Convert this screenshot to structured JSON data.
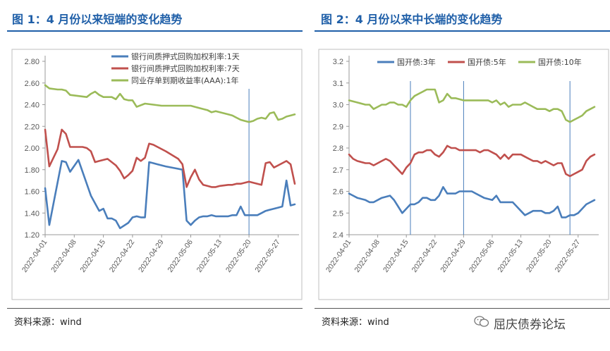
{
  "figures": [
    {
      "title": "图 1：4 月份以来短端的变化趋势",
      "source": "资料来源：wind"
    },
    {
      "title": "图 2：4 月份以来中长端的变化趋势",
      "source": "资料来源：wind"
    }
  ],
  "watermark": {
    "text": "屈庆债券论坛",
    "icon": "wechat-icon"
  },
  "chart_data": [
    {
      "type": "line",
      "title": "图 1：4 月份以来短端的变化趋势",
      "xlabel": "",
      "ylabel": "",
      "ylim": [
        1.2,
        2.8
      ],
      "yticks": [
        "1.20",
        "1.40",
        "1.60",
        "1.80",
        "2.00",
        "2.20",
        "2.40",
        "2.60",
        "2.80"
      ],
      "xticks": [
        "2022-04-01",
        "2022-04-08",
        "2022-04-15",
        "2022-04-22",
        "2022-04-29",
        "2022-05-06",
        "2022-05-13",
        "2022-05-20",
        "2022-05-27"
      ],
      "grid": false,
      "legend": "top-right",
      "vlines": [
        49
      ],
      "series": [
        {
          "name": "银行间质押式回购加权利率:1天",
          "color": "#4a7ebb",
          "x": [
            0,
            1,
            4,
            5,
            6,
            8,
            11,
            13,
            14,
            15,
            16,
            17,
            18,
            20,
            21,
            22,
            23,
            24,
            25,
            26,
            27,
            28,
            29,
            33,
            34,
            35,
            36,
            37,
            38,
            39,
            40,
            41,
            44,
            45,
            46,
            47,
            48,
            49,
            50,
            51,
            52,
            53,
            54,
            55,
            56,
            57,
            58,
            59,
            60
          ],
          "y": [
            1.63,
            1.29,
            1.88,
            1.87,
            1.78,
            1.89,
            1.56,
            1.42,
            1.44,
            1.35,
            1.35,
            1.33,
            1.26,
            1.31,
            1.36,
            1.37,
            1.36,
            1.36,
            1.87,
            1.86,
            1.85,
            1.84,
            1.83,
            1.8,
            1.33,
            1.29,
            1.33,
            1.36,
            1.37,
            1.37,
            1.38,
            1.37,
            1.37,
            1.38,
            1.38,
            1.46,
            1.38,
            1.38,
            1.38,
            1.38,
            1.4,
            1.42,
            1.43,
            1.44,
            1.45,
            1.46,
            1.7,
            1.47,
            1.48
          ]
        },
        {
          "name": "银行间质押式回购加权利率:7天",
          "color": "#c0504d",
          "x": [
            0,
            1,
            3,
            4,
            5,
            6,
            7,
            8,
            9,
            10,
            11,
            12,
            13,
            14,
            15,
            16,
            17,
            18,
            19,
            20,
            21,
            22,
            23,
            24,
            25,
            26,
            29,
            32,
            33,
            34,
            35,
            36,
            37,
            38,
            39,
            40,
            41,
            42,
            44,
            45,
            46,
            47,
            48,
            49,
            50,
            51,
            52,
            53,
            54,
            55,
            56,
            57,
            58,
            59,
            60
          ],
          "y": [
            2.17,
            1.83,
            1.99,
            2.17,
            2.13,
            2.01,
            2.01,
            2.01,
            2.01,
            2.0,
            1.97,
            1.87,
            1.88,
            1.89,
            1.9,
            1.87,
            1.84,
            1.79,
            1.72,
            1.75,
            1.79,
            1.91,
            1.88,
            1.91,
            2.04,
            2.03,
            1.97,
            1.9,
            1.85,
            1.64,
            1.73,
            1.8,
            1.71,
            1.66,
            1.65,
            1.64,
            1.64,
            1.65,
            1.66,
            1.66,
            1.67,
            1.67,
            1.68,
            1.69,
            1.68,
            1.67,
            1.66,
            1.86,
            1.87,
            1.82,
            1.84,
            1.86,
            1.88,
            1.85,
            1.67
          ]
        },
        {
          "name": "同业存单到期收益率(AAA):1年",
          "color": "#9bbb59",
          "x": [
            0,
            1,
            3,
            4,
            5,
            6,
            8,
            10,
            11,
            12,
            13,
            14,
            16,
            17,
            18,
            19,
            20,
            21,
            22,
            24,
            26,
            28,
            30,
            33,
            34,
            35,
            36,
            38,
            39,
            40,
            41,
            42,
            43,
            44,
            45,
            46,
            47,
            48,
            49,
            50,
            51,
            52,
            53,
            54,
            55,
            56,
            57,
            58,
            59,
            60
          ],
          "y": [
            2.58,
            2.55,
            2.54,
            2.54,
            2.53,
            2.49,
            2.48,
            2.47,
            2.5,
            2.52,
            2.49,
            2.47,
            2.47,
            2.45,
            2.5,
            2.45,
            2.44,
            2.44,
            2.38,
            2.41,
            2.4,
            2.39,
            2.39,
            2.39,
            2.39,
            2.39,
            2.38,
            2.36,
            2.35,
            2.33,
            2.34,
            2.33,
            2.32,
            2.31,
            2.3,
            2.28,
            2.26,
            2.25,
            2.24,
            2.25,
            2.27,
            2.28,
            2.27,
            2.32,
            2.33,
            2.26,
            2.27,
            2.29,
            2.3,
            2.31
          ]
        }
      ]
    },
    {
      "type": "line",
      "title": "图 2：4 月份以来中长端的变化趋势",
      "xlabel": "",
      "ylabel": "",
      "ylim": [
        2.4,
        3.2
      ],
      "yticks": [
        "2.4",
        "2.5",
        "2.6",
        "2.7",
        "2.8",
        "2.9",
        "3.0",
        "3.1",
        "3.2"
      ],
      "xticks": [
        "2022-04-01",
        "2022-04-08",
        "2022-04-15",
        "2022-04-22",
        "2022-04-29",
        "2022-05-06",
        "2022-05-13",
        "2022-05-20",
        "2022-05-27"
      ],
      "grid": false,
      "legend": "top",
      "vlines": [
        15,
        28,
        54
      ],
      "series": [
        {
          "name": "国开债:3年",
          "color": "#4a7ebb",
          "x": [
            0,
            1,
            2,
            4,
            5,
            6,
            8,
            10,
            11,
            12,
            13,
            14,
            15,
            16,
            17,
            18,
            19,
            20,
            21,
            22,
            23,
            24,
            25,
            26,
            27,
            28,
            29,
            30,
            31,
            33,
            35,
            36,
            37,
            38,
            39,
            40,
            41,
            42,
            43,
            44,
            45,
            46,
            47,
            48,
            49,
            50,
            51,
            52,
            53,
            54,
            55,
            56,
            57,
            58,
            59,
            60
          ],
          "y": [
            2.59,
            2.58,
            2.57,
            2.56,
            2.55,
            2.55,
            2.57,
            2.58,
            2.56,
            2.53,
            2.5,
            2.52,
            2.54,
            2.54,
            2.55,
            2.57,
            2.57,
            2.56,
            2.56,
            2.58,
            2.62,
            2.59,
            2.59,
            2.59,
            2.6,
            2.6,
            2.6,
            2.6,
            2.59,
            2.57,
            2.56,
            2.58,
            2.55,
            2.55,
            2.55,
            2.55,
            2.53,
            2.51,
            2.49,
            2.5,
            2.51,
            2.51,
            2.51,
            2.5,
            2.5,
            2.51,
            2.53,
            2.48,
            2.48,
            2.49,
            2.49,
            2.5,
            2.52,
            2.54,
            2.55,
            2.56
          ]
        },
        {
          "name": "国开债:5年",
          "color": "#c0504d",
          "x": [
            0,
            1,
            2,
            4,
            5,
            6,
            8,
            9,
            10,
            11,
            12,
            13,
            14,
            15,
            16,
            17,
            18,
            19,
            20,
            21,
            22,
            23,
            24,
            25,
            26,
            27,
            28,
            29,
            30,
            31,
            32,
            33,
            34,
            35,
            36,
            37,
            38,
            39,
            40,
            41,
            42,
            43,
            44,
            45,
            46,
            47,
            48,
            49,
            50,
            51,
            52,
            53,
            54,
            55,
            56,
            57,
            58,
            59,
            60
          ],
          "y": [
            2.77,
            2.75,
            2.74,
            2.73,
            2.73,
            2.72,
            2.74,
            2.75,
            2.74,
            2.72,
            2.7,
            2.68,
            2.71,
            2.73,
            2.77,
            2.78,
            2.78,
            2.79,
            2.79,
            2.77,
            2.76,
            2.78,
            2.81,
            2.8,
            2.8,
            2.79,
            2.79,
            2.79,
            2.79,
            2.79,
            2.78,
            2.79,
            2.79,
            2.78,
            2.77,
            2.75,
            2.77,
            2.75,
            2.77,
            2.77,
            2.77,
            2.76,
            2.75,
            2.74,
            2.74,
            2.73,
            2.74,
            2.73,
            2.72,
            2.73,
            2.73,
            2.68,
            2.67,
            2.68,
            2.69,
            2.7,
            2.74,
            2.76,
            2.77
          ]
        },
        {
          "name": "国开债:10年",
          "color": "#9bbb59",
          "x": [
            0,
            2,
            4,
            5,
            6,
            7,
            8,
            9,
            10,
            11,
            12,
            13,
            14,
            15,
            16,
            17,
            18,
            19,
            20,
            21,
            22,
            23,
            24,
            25,
            26,
            28,
            30,
            31,
            32,
            33,
            34,
            35,
            36,
            37,
            38,
            39,
            40,
            41,
            42,
            43,
            44,
            45,
            46,
            47,
            48,
            49,
            50,
            51,
            52,
            53,
            54,
            55,
            56,
            57,
            58,
            59,
            60
          ],
          "y": [
            3.02,
            3.01,
            3.0,
            3.0,
            2.98,
            2.99,
            3.0,
            3.0,
            3.01,
            3.01,
            3.0,
            3.0,
            2.99,
            3.02,
            3.04,
            3.05,
            3.06,
            3.07,
            3.07,
            3.07,
            3.01,
            3.02,
            3.05,
            3.03,
            3.03,
            3.02,
            3.02,
            3.02,
            3.02,
            3.02,
            3.02,
            3.01,
            3.02,
            3.0,
            3.01,
            2.99,
            3.0,
            3.0,
            3.0,
            3.01,
            3.0,
            2.99,
            2.98,
            2.98,
            2.98,
            2.97,
            2.98,
            2.98,
            2.97,
            2.93,
            2.92,
            2.93,
            2.94,
            2.95,
            2.97,
            2.98,
            2.99
          ]
        }
      ]
    }
  ]
}
